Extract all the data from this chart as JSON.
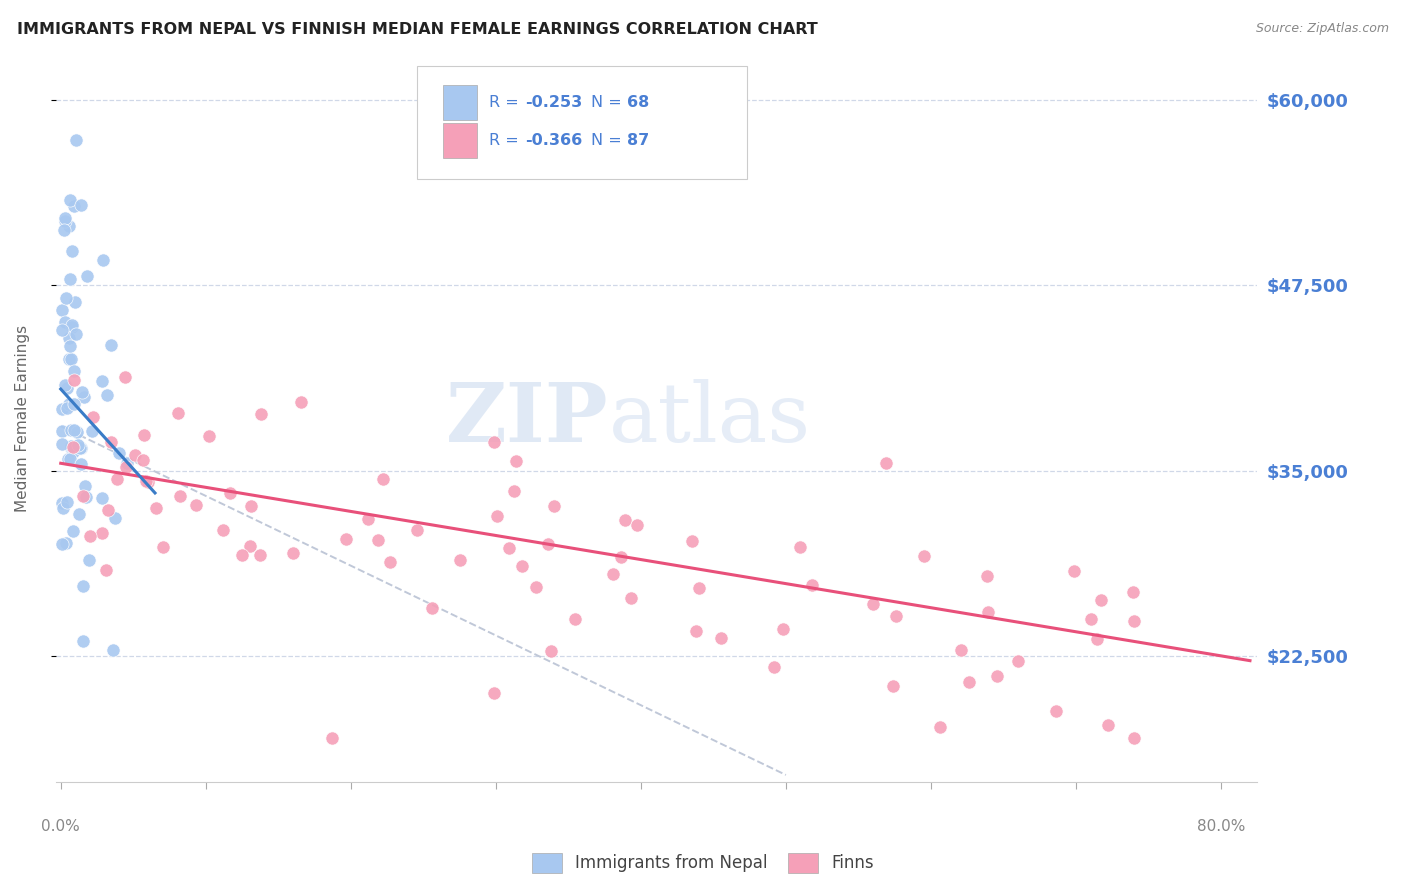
{
  "title": "IMMIGRANTS FROM NEPAL VS FINNISH MEDIAN FEMALE EARNINGS CORRELATION CHART",
  "source": "Source: ZipAtlas.com",
  "ylabel": "Median Female Earnings",
  "yticks": [
    22500,
    35000,
    47500,
    60000
  ],
  "ytick_labels": [
    "$22,500",
    "$35,000",
    "$47,500",
    "$60,000"
  ],
  "ymin": 14000,
  "ymax": 63000,
  "xmin": -0.003,
  "xmax": 0.825,
  "legend_bottom": [
    "Immigrants from Nepal",
    "Finns"
  ],
  "blue_color": "#a8c8f0",
  "pink_color": "#f5a0b8",
  "blue_line_color": "#3a7cc7",
  "pink_line_color": "#e8507a",
  "gray_line_color": "#c0c8d8",
  "title_color": "#222222",
  "ytick_color": "#4a7fd4",
  "xtick_color": "#888888",
  "background_color": "#ffffff",
  "grid_color": "#d0d8e8",
  "watermark_text": "ZIPatlas",
  "legend_text_dark": "#222222",
  "legend_text_blue": "#4a7fd4",
  "legend_r1": "-0.253",
  "legend_n1": "68",
  "legend_r2": "-0.366",
  "legend_n2": "87",
  "pink_line_x0": 0.0,
  "pink_line_y0": 35500,
  "pink_line_x1": 0.82,
  "pink_line_y1": 22200,
  "gray_line_x0": 0.0,
  "gray_line_y0": 38000,
  "gray_line_x1": 0.5,
  "gray_line_y1": 14500,
  "blue_line_x0": 0.0,
  "blue_line_y0": 40500,
  "blue_line_x1": 0.065,
  "blue_line_y1": 33500
}
